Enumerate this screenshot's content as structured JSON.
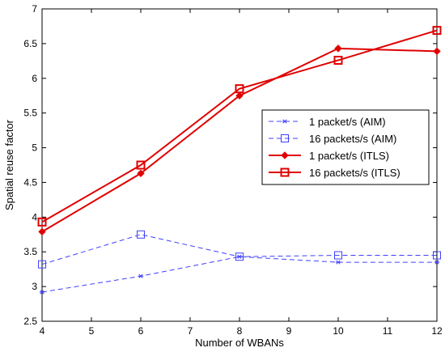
{
  "chart_data": {
    "type": "line",
    "xlabel": "Number of WBANs",
    "ylabel": "Spatial reuse factor",
    "xlim": [
      4,
      12
    ],
    "ylim": [
      2.5,
      7
    ],
    "x_ticks": [
      4,
      5,
      6,
      7,
      8,
      9,
      10,
      11,
      12
    ],
    "y_ticks": [
      2.5,
      3,
      3.5,
      4,
      4.5,
      5,
      5.5,
      6,
      6.5,
      7
    ],
    "grid": false,
    "legend_position": "right",
    "series": [
      {
        "name": "1 packet/s (AIM)",
        "x": [
          4,
          6,
          8,
          10,
          12
        ],
        "y": [
          2.92,
          3.15,
          3.43,
          3.35,
          3.35
        ],
        "color": "#4040ff",
        "line_style": "dashed",
        "marker": "asterisk"
      },
      {
        "name": "16 packets/s (AIM)",
        "x": [
          4,
          6,
          8,
          10,
          12
        ],
        "y": [
          3.32,
          3.75,
          3.43,
          3.45,
          3.45
        ],
        "color": "#4040ff",
        "line_style": "dashed",
        "marker": "square-open"
      },
      {
        "name": "1 packet/s (ITLS)",
        "x": [
          4,
          6,
          8,
          10,
          12
        ],
        "y": [
          3.79,
          4.63,
          5.75,
          6.43,
          6.39
        ],
        "color": "#e00000",
        "line_style": "solid",
        "marker": "diamond-filled"
      },
      {
        "name": "16 packets/s (ITLS)",
        "x": [
          4,
          6,
          8,
          10,
          12
        ],
        "y": [
          3.93,
          4.75,
          5.85,
          6.26,
          6.69
        ],
        "color": "#e00000",
        "line_style": "solid",
        "marker": "square-open"
      }
    ]
  }
}
